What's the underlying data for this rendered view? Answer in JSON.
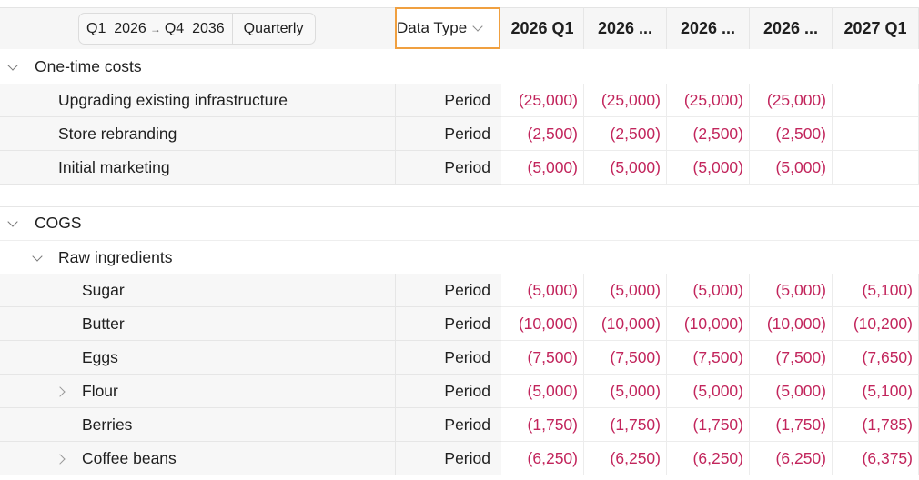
{
  "header": {
    "range_start": "Q1  2026",
    "range_end": "Q4  2036",
    "period": "Quarterly",
    "data_type_label": "Data Type",
    "columns": [
      "2026 Q1",
      "2026 ...",
      "2026 ...",
      "2026 ...",
      "2027 Q1"
    ]
  },
  "sections": [
    {
      "title": "One-time costs",
      "rows": [
        {
          "label": "Upgrading existing infrastructure",
          "type": "Period",
          "values": [
            "(25,000)",
            "(25,000)",
            "(25,000)",
            "(25,000)",
            ""
          ]
        },
        {
          "label": "Store rebranding",
          "type": "Period",
          "values": [
            "(2,500)",
            "(2,500)",
            "(2,500)",
            "(2,500)",
            ""
          ]
        },
        {
          "label": "Initial marketing",
          "type": "Period",
          "values": [
            "(5,000)",
            "(5,000)",
            "(5,000)",
            "(5,000)",
            ""
          ]
        }
      ]
    },
    {
      "title": "COGS",
      "subgroup": "Raw ingredients",
      "rows": [
        {
          "label": "Sugar",
          "type": "Period",
          "values": [
            "(5,000)",
            "(5,000)",
            "(5,000)",
            "(5,000)",
            "(5,100)"
          ]
        },
        {
          "label": "Butter",
          "type": "Period",
          "values": [
            "(10,000)",
            "(10,000)",
            "(10,000)",
            "(10,000)",
            "(10,200)"
          ]
        },
        {
          "label": "Eggs",
          "type": "Period",
          "values": [
            "(7,500)",
            "(7,500)",
            "(7,500)",
            "(7,500)",
            "(7,650)"
          ]
        },
        {
          "label": "Flour",
          "type": "Period",
          "values": [
            "(5,000)",
            "(5,000)",
            "(5,000)",
            "(5,000)",
            "(5,100)"
          ]
        },
        {
          "label": "Berries",
          "type": "Period",
          "values": [
            "(1,750)",
            "(1,750)",
            "(1,750)",
            "(1,750)",
            "(1,785)"
          ]
        },
        {
          "label": "Coffee beans",
          "type": "Period",
          "values": [
            "(6,250)",
            "(6,250)",
            "(6,250)",
            "(6,250)",
            "(6,375)"
          ]
        }
      ]
    }
  ],
  "colors": {
    "negative": "#c2255c",
    "focus": "#f0a040"
  }
}
